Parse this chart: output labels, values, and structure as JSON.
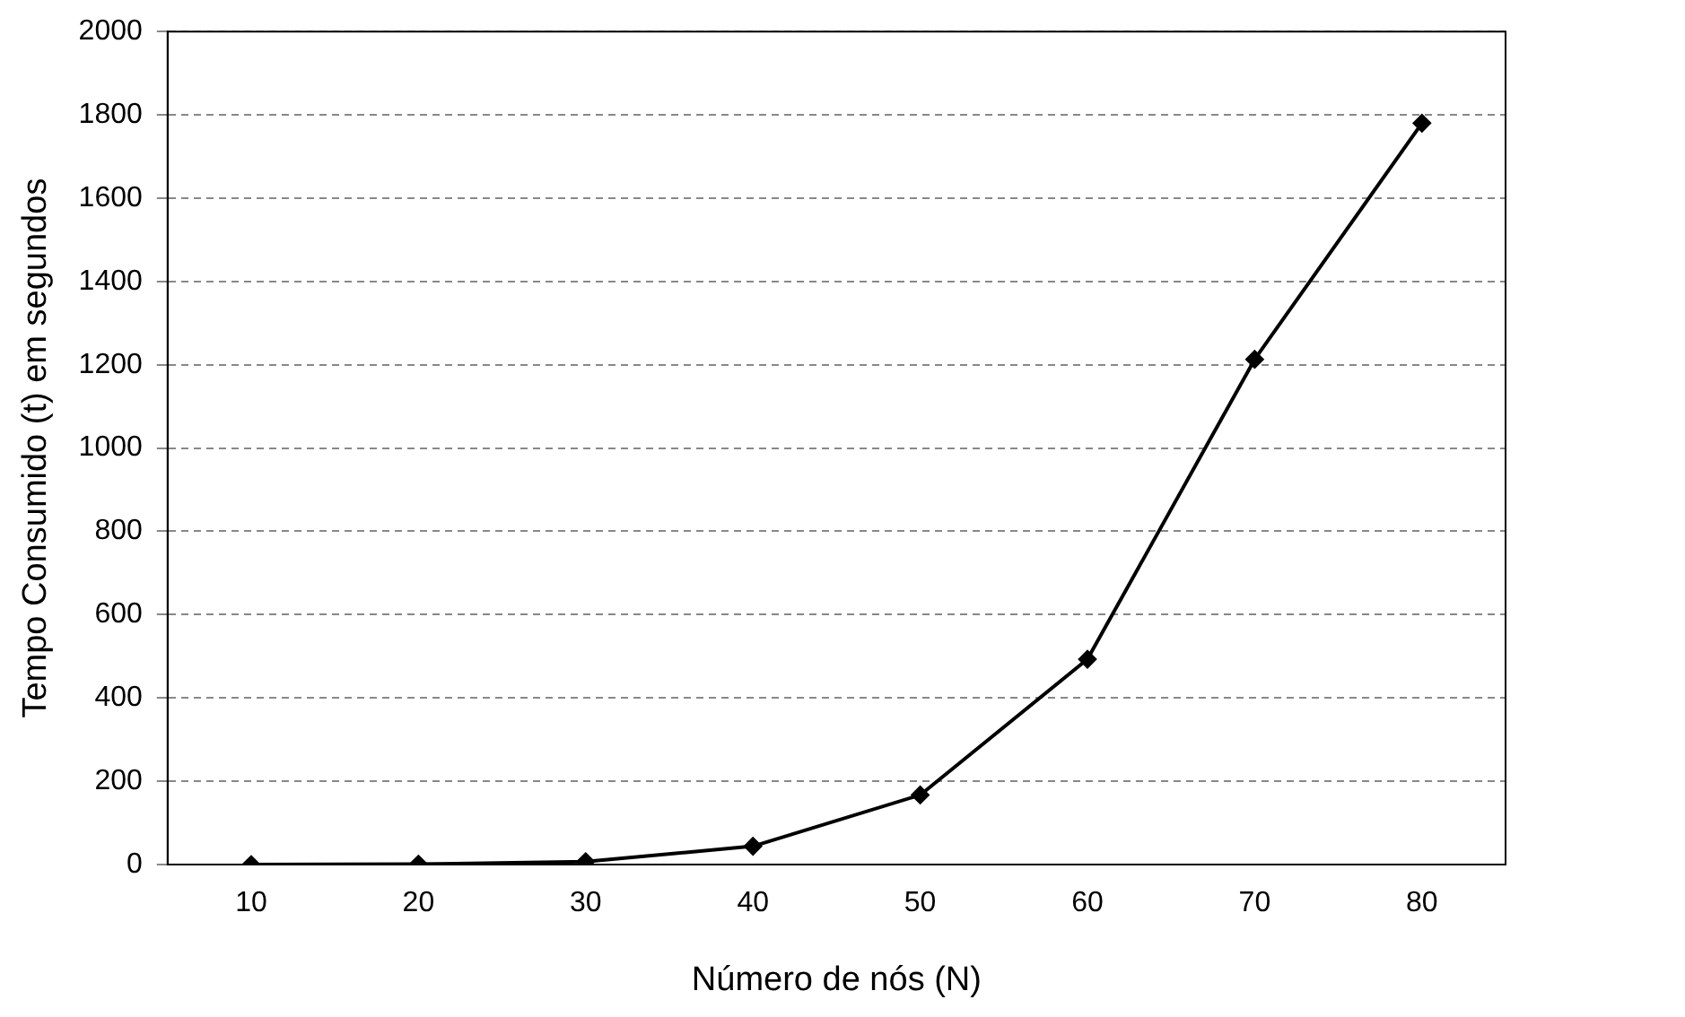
{
  "chart_data": {
    "type": "line",
    "xlabel": "Número de nós (N)",
    "ylabel": "Tempo Consumido (t) em segundos",
    "categories": [
      "10",
      "20",
      "30",
      "40",
      "50",
      "60",
      "70",
      "80"
    ],
    "series": [
      {
        "color": "#000000",
        "values": [
          0,
          1,
          7,
          44,
          167,
          493,
          1213,
          1780
        ]
      }
    ],
    "ylim": [
      0,
      2000
    ],
    "yticks": [
      0,
      200,
      400,
      600,
      800,
      1000,
      1200,
      1400,
      1600,
      1800,
      2000
    ],
    "grid": "y",
    "legend": false,
    "marker": "diamond",
    "line_style": "solid"
  }
}
